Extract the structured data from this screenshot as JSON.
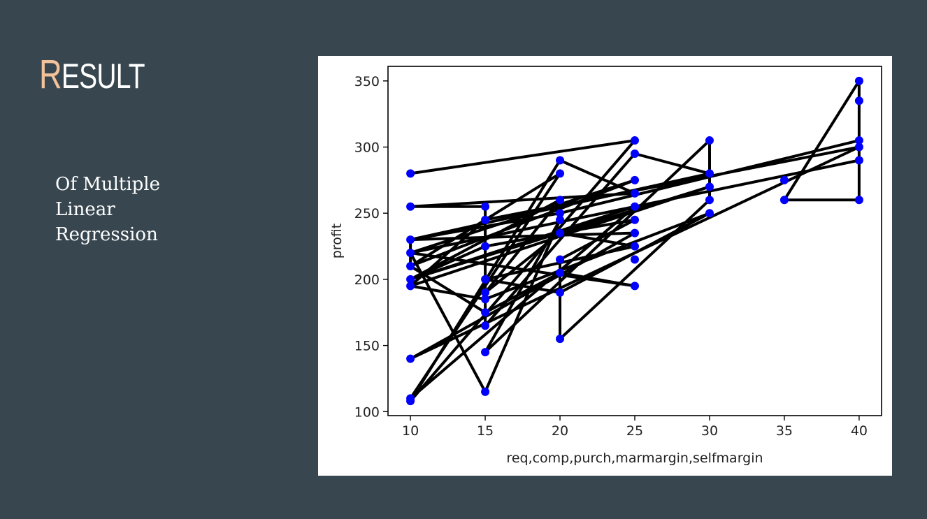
{
  "slide": {
    "title_initial": "R",
    "title_rest": "ESULT",
    "body": "Of Multiple Linear Regression"
  },
  "chart_data": {
    "type": "scatter",
    "xlabel": "req,comp,purch,marmargin,selfmargin",
    "ylabel": "profit",
    "xlim": [
      8.5,
      41.5
    ],
    "ylim": [
      97,
      361
    ],
    "xticks": [
      10,
      15,
      20,
      25,
      30,
      35,
      40
    ],
    "yticks": [
      100,
      150,
      200,
      250,
      300,
      350
    ],
    "grid": false,
    "marker_color": "#0000ff",
    "line_color": "#000000",
    "points": [
      [
        20,
        290
      ],
      [
        10,
        280
      ],
      [
        25,
        305
      ],
      [
        30,
        305
      ],
      [
        40,
        350
      ],
      [
        40,
        335
      ],
      [
        35,
        275
      ],
      [
        40,
        300
      ],
      [
        25,
        295
      ],
      [
        20,
        280
      ],
      [
        10,
        255
      ],
      [
        15,
        255
      ],
      [
        25,
        275
      ],
      [
        30,
        280
      ],
      [
        40,
        305
      ],
      [
        40,
        290
      ],
      [
        35,
        260
      ],
      [
        40,
        260
      ],
      [
        25,
        265
      ],
      [
        20,
        260
      ],
      [
        30,
        260
      ],
      [
        25,
        255
      ],
      [
        10,
        230
      ],
      [
        15,
        245
      ],
      [
        20,
        250
      ],
      [
        25,
        245
      ],
      [
        30,
        250
      ],
      [
        10,
        220
      ],
      [
        15,
        225
      ],
      [
        20,
        235
      ],
      [
        25,
        235
      ],
      [
        20,
        215
      ],
      [
        25,
        225
      ],
      [
        10,
        210
      ],
      [
        15,
        200
      ],
      [
        20,
        205
      ],
      [
        25,
        215
      ],
      [
        10,
        200
      ],
      [
        15,
        190
      ],
      [
        20,
        190
      ],
      [
        10,
        195
      ],
      [
        15,
        185
      ],
      [
        25,
        195
      ],
      [
        15,
        175
      ],
      [
        20,
        155
      ],
      [
        10,
        140
      ],
      [
        15,
        165
      ],
      [
        10,
        110
      ],
      [
        10,
        108
      ],
      [
        15,
        145
      ],
      [
        15,
        115
      ],
      [
        20,
        245
      ],
      [
        30,
        270
      ]
    ],
    "path": [
      [
        10,
        280
      ],
      [
        25,
        305
      ],
      [
        10,
        108
      ],
      [
        20,
        290
      ],
      [
        25,
        265
      ],
      [
        10,
        255
      ],
      [
        15,
        255
      ],
      [
        15,
        165
      ],
      [
        25,
        295
      ],
      [
        30,
        280
      ],
      [
        10,
        230
      ],
      [
        20,
        250
      ],
      [
        40,
        305
      ],
      [
        40,
        350
      ],
      [
        35,
        260
      ],
      [
        40,
        260
      ],
      [
        40,
        335
      ],
      [
        40,
        290
      ],
      [
        10,
        220
      ],
      [
        25,
        275
      ],
      [
        10,
        210
      ],
      [
        20,
        280
      ],
      [
        10,
        110
      ],
      [
        25,
        255
      ],
      [
        10,
        200
      ],
      [
        30,
        270
      ],
      [
        10,
        195
      ],
      [
        15,
        245
      ],
      [
        40,
        300
      ],
      [
        10,
        140
      ],
      [
        25,
        235
      ],
      [
        10,
        230
      ],
      [
        10,
        210
      ],
      [
        15,
        175
      ],
      [
        20,
        205
      ],
      [
        25,
        195
      ],
      [
        10,
        220
      ],
      [
        15,
        115
      ],
      [
        20,
        245
      ],
      [
        15,
        145
      ],
      [
        30,
        305
      ],
      [
        30,
        260
      ],
      [
        20,
        155
      ],
      [
        20,
        215
      ],
      [
        25,
        245
      ],
      [
        15,
        225
      ],
      [
        10,
        200
      ],
      [
        20,
        260
      ],
      [
        15,
        190
      ],
      [
        20,
        235
      ],
      [
        25,
        225
      ],
      [
        15,
        200
      ],
      [
        20,
        190
      ],
      [
        30,
        250
      ],
      [
        15,
        185
      ],
      [
        10,
        195
      ]
    ]
  }
}
